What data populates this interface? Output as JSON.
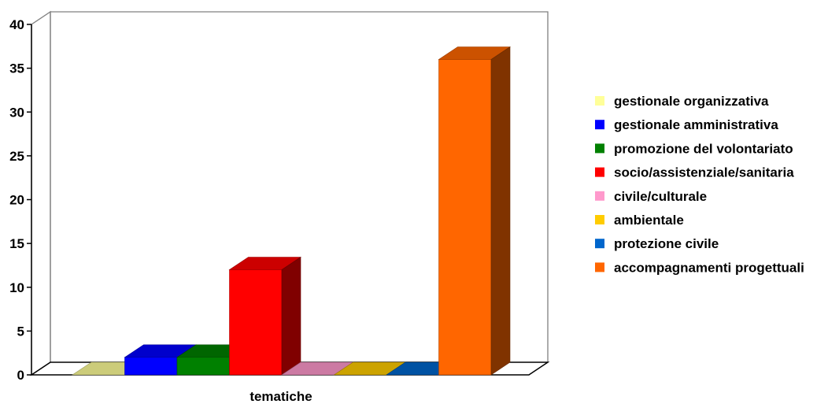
{
  "chart_data": {
    "type": "bar",
    "title": "",
    "xlabel": "tematiche",
    "ylabel": "",
    "ylim": [
      0,
      40
    ],
    "yticks": [
      0,
      5,
      10,
      15,
      20,
      25,
      30,
      35,
      40
    ],
    "grid": false,
    "legend_position": "right",
    "three_d": true,
    "categories": [
      "tematiche"
    ],
    "series": [
      {
        "name": "gestionale organizzativa",
        "values": [
          0
        ],
        "color": "#ffff99"
      },
      {
        "name": "gestionale amministrativa",
        "values": [
          2
        ],
        "color": "#0000ff"
      },
      {
        "name": "promozione del volontariato",
        "values": [
          2
        ],
        "color": "#008000"
      },
      {
        "name": "socio/assistenziale/sanitaria",
        "values": [
          12
        ],
        "color": "#ff0000"
      },
      {
        "name": "civile/culturale",
        "values": [
          0
        ],
        "color": "#ff99cc"
      },
      {
        "name": "ambientale",
        "values": [
          0
        ],
        "color": "#ffcc00"
      },
      {
        "name": "protezione civile",
        "values": [
          0
        ],
        "color": "#0066cc"
      },
      {
        "name": "accompagnamenti progettuali",
        "values": [
          36
        ],
        "color": "#ff6600"
      }
    ]
  }
}
